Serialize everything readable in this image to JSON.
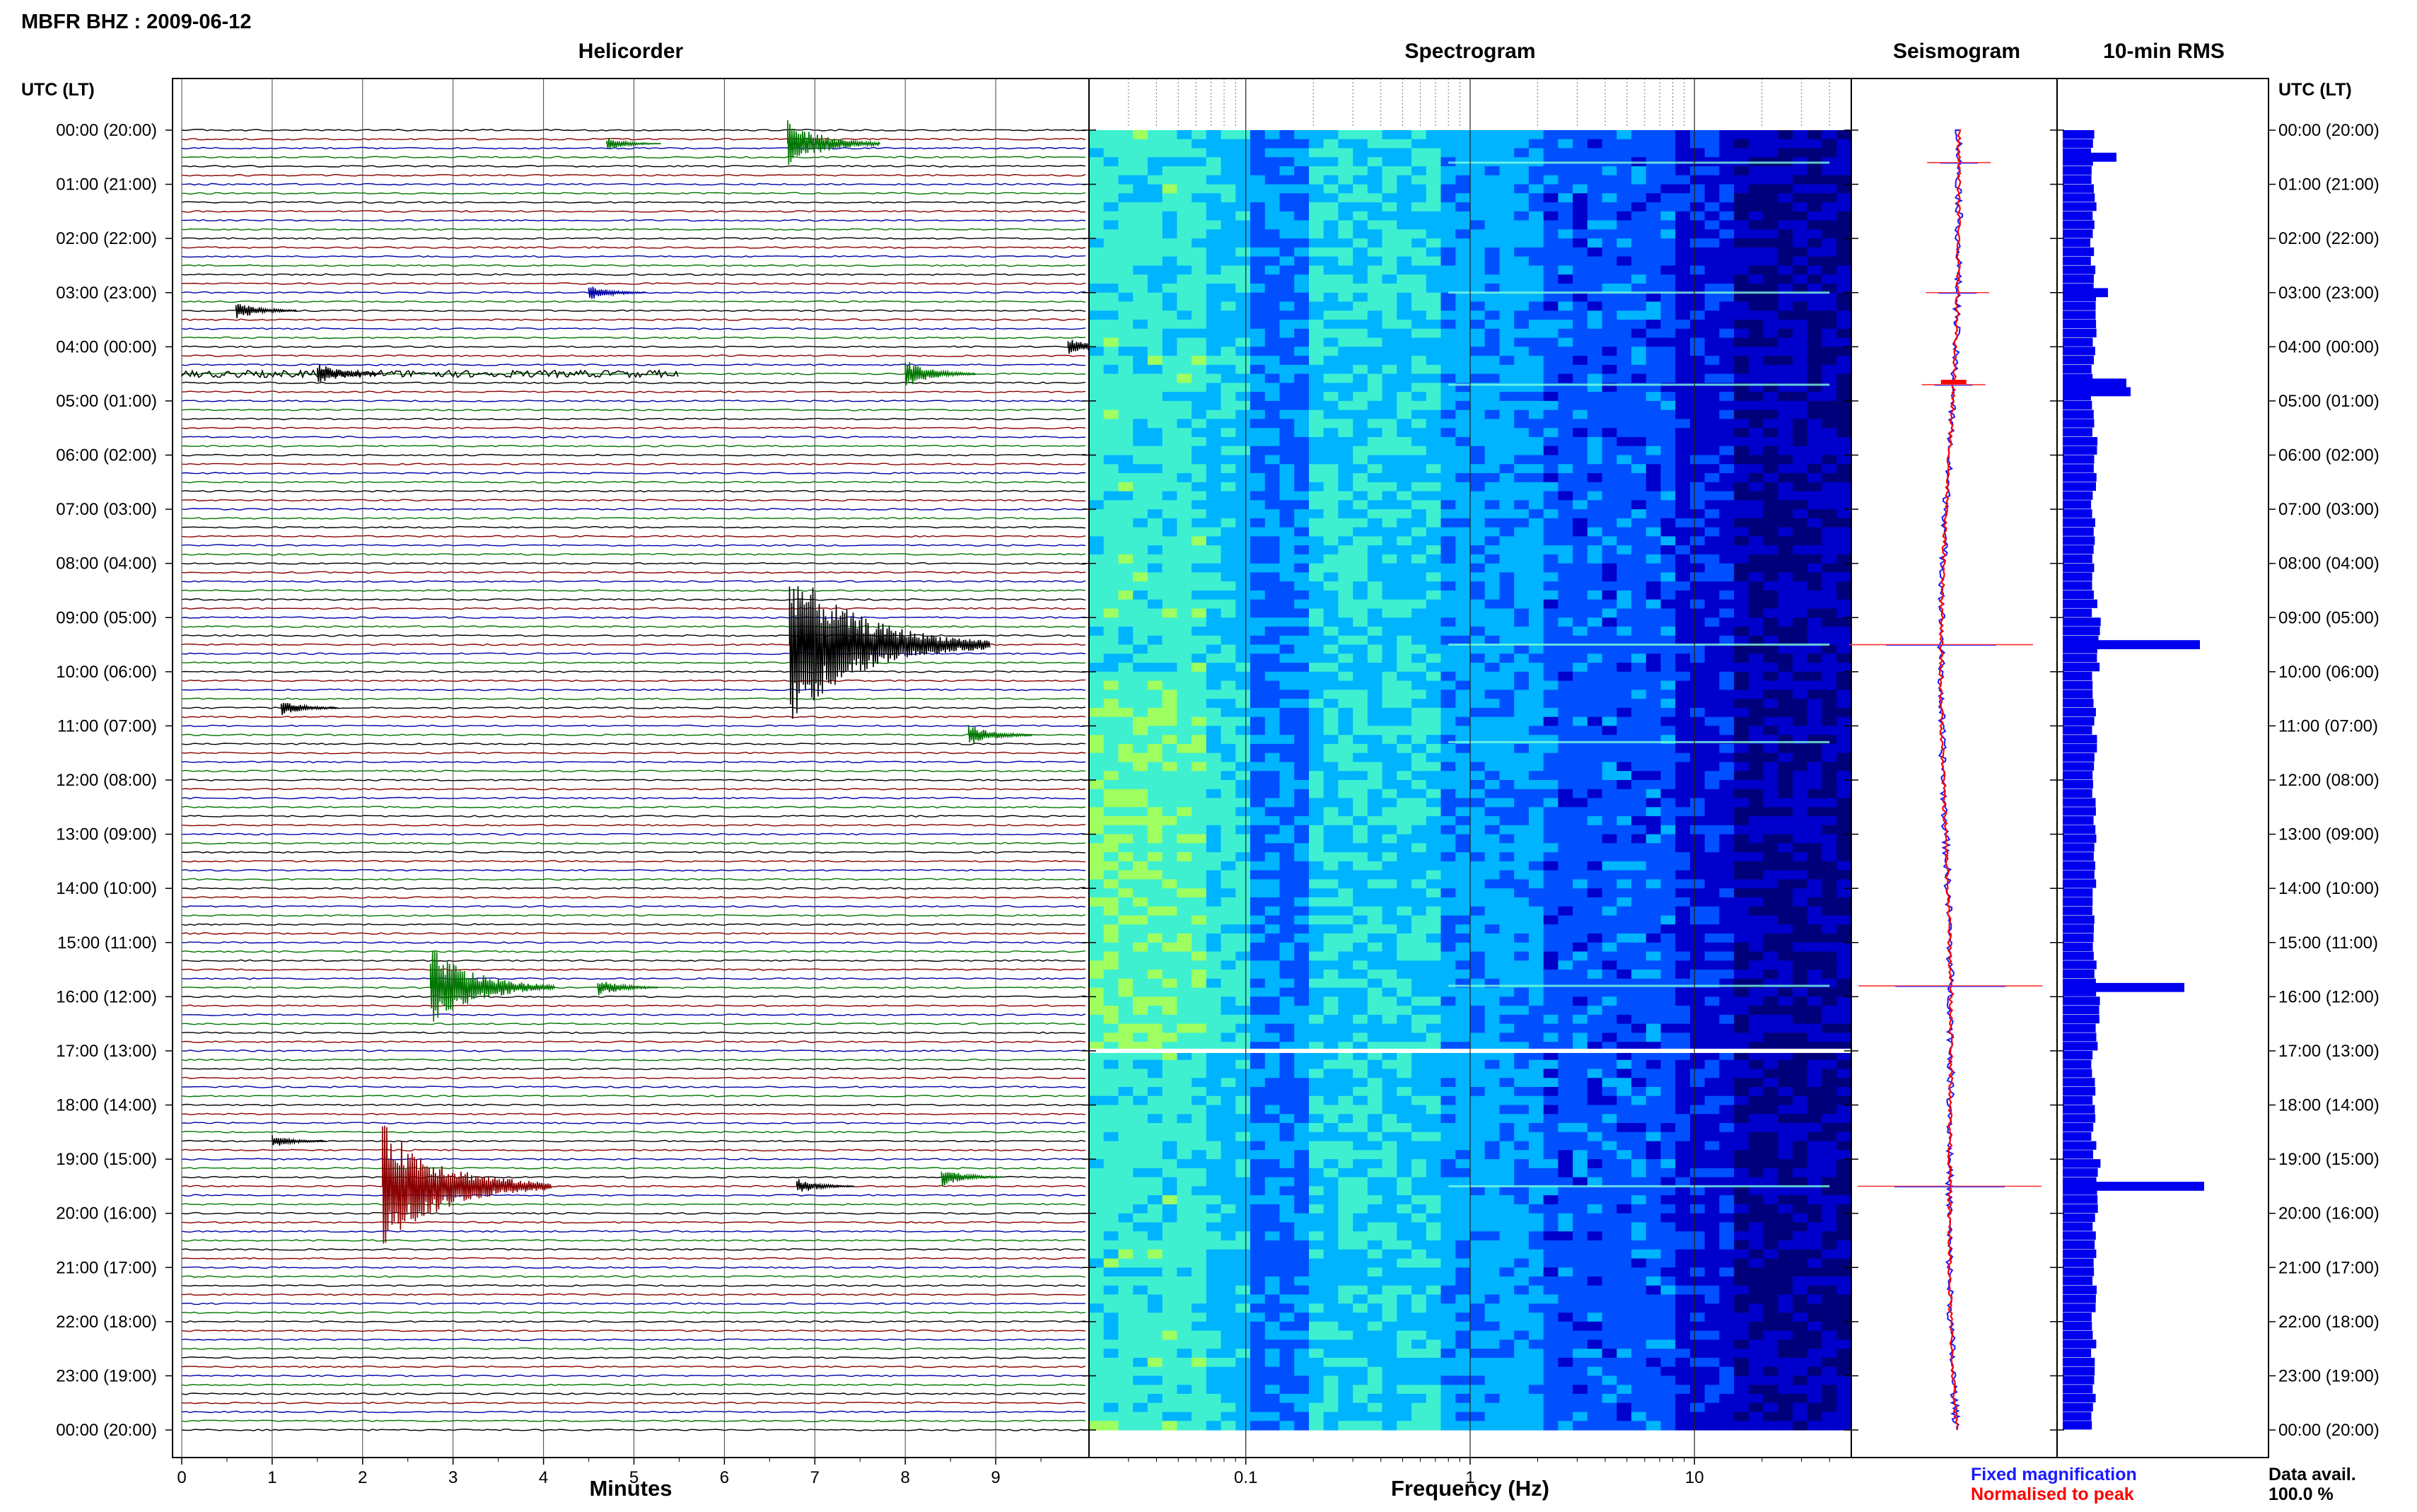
{
  "station_title": "MBFR BHZ : 2009-06-12",
  "time_axis_label": "UTC (LT)",
  "chart_data": [
    {
      "type": "line",
      "panel": "helicorder",
      "title": "Helicorder",
      "xlabel": "Minutes",
      "xlim": [
        0,
        10
      ],
      "x_ticks": [
        "0",
        "1",
        "2",
        "3",
        "4",
        "5",
        "6",
        "7",
        "8",
        "9"
      ],
      "trace_colors": [
        "#000000",
        "#8b0000",
        "#0000aa",
        "#007700"
      ],
      "row_labels": [
        "00:00 (20:00)",
        "01:00 (21:00)",
        "02:00 (22:00)",
        "03:00 (23:00)",
        "04:00 (00:00)",
        "05:00 (01:00)",
        "06:00 (02:00)",
        "07:00 (03:00)",
        "08:00 (04:00)",
        "09:00 (05:00)",
        "10:00 (06:00)",
        "11:00 (07:00)",
        "12:00 (08:00)",
        "13:00 (09:00)",
        "14:00 (10:00)",
        "15:00 (11:00)",
        "16:00 (12:00)",
        "17:00 (13:00)",
        "18:00 (14:00)",
        "19:00 (15:00)",
        "20:00 (16:00)",
        "21:00 (17:00)",
        "22:00 (18:00)",
        "23:00 (19:00)",
        "00:00 (20:00)"
      ],
      "events": [
        {
          "hour": 0.25,
          "minute": 6.7,
          "amplitude": 0.8,
          "color": "#007700"
        },
        {
          "hour": 0.25,
          "minute": 4.7,
          "amplitude": 0.2,
          "color": "#007700"
        },
        {
          "hour": 3.0,
          "minute": 4.5,
          "amplitude": 0.25,
          "color": "#0000aa"
        },
        {
          "hour": 3.33,
          "minute": 0.6,
          "amplitude": 0.3,
          "color": "#000000"
        },
        {
          "hour": 4.0,
          "minute": 9.8,
          "amplitude": 0.3,
          "color": "#000000"
        },
        {
          "hour": 4.5,
          "minute": 1.5,
          "amplitude": 0.35,
          "color": "#000000"
        },
        {
          "hour": 4.5,
          "minute": 8.0,
          "amplitude": 0.45,
          "color": "#007700"
        },
        {
          "hour": 9.5,
          "minute": 6.72,
          "amplitude": 2.5,
          "color": "#000000"
        },
        {
          "hour": 10.67,
          "minute": 1.1,
          "amplitude": 0.25,
          "color": "#000000"
        },
        {
          "hour": 11.17,
          "minute": 8.7,
          "amplitude": 0.35,
          "color": "#007700"
        },
        {
          "hour": 15.83,
          "minute": 2.75,
          "amplitude": 1.3,
          "color": "#007700"
        },
        {
          "hour": 15.83,
          "minute": 4.6,
          "amplitude": 0.3,
          "color": "#007700"
        },
        {
          "hour": 19.5,
          "minute": 2.22,
          "amplitude": 2.0,
          "color": "#8b0000"
        },
        {
          "hour": 19.33,
          "minute": 8.4,
          "amplitude": 0.3,
          "color": "#007700"
        },
        {
          "hour": 19.5,
          "minute": 6.8,
          "amplitude": 0.25,
          "color": "#000000"
        },
        {
          "hour": 18.67,
          "minute": 1.0,
          "amplitude": 0.2,
          "color": "#000000"
        }
      ]
    },
    {
      "type": "heatmap",
      "panel": "spectrogram",
      "title": "Spectrogram",
      "xlabel": "Frequency (Hz)",
      "xscale": "log",
      "xlim": [
        0.02,
        50
      ],
      "x_ticks": [
        {
          "label": "0.1",
          "value": 0.1
        },
        {
          "label": "1",
          "value": 1
        },
        {
          "label": "10",
          "value": 10
        }
      ],
      "colormap": [
        "#00007a",
        "#0000cc",
        "#0050ff",
        "#00b4ff",
        "#3ff0d0",
        "#a0ff60"
      ],
      "gap_hour": 17.0
    },
    {
      "type": "line",
      "panel": "seismogram",
      "title": "Seismogram",
      "legend": [
        {
          "label": "Fixed magnification",
          "color": "#1a1aff"
        },
        {
          "label": "Normalised to peak",
          "color": "#ff0000"
        }
      ],
      "spikes_hours": [
        0.6,
        3.0,
        4.7,
        9.5,
        15.8,
        19.5
      ]
    },
    {
      "type": "bar",
      "panel": "rms",
      "title": "10-min RMS",
      "bar_color": "#0000ee",
      "values_per_hour": [
        0.5,
        0.6,
        0.4,
        0.7,
        0.4,
        0.6,
        0.5,
        0.5,
        0.6,
        1.0,
        0.5,
        0.6,
        0.5,
        0.5,
        0.5,
        0.5,
        0.9,
        0.5,
        0.5,
        1.0,
        0.5,
        0.5,
        0.5,
        0.5
      ],
      "peak_bars": [
        {
          "hour": 0.5,
          "value": 0.38
        },
        {
          "hour": 3.0,
          "value": 0.32
        },
        {
          "hour": 4.67,
          "value": 0.45
        },
        {
          "hour": 4.83,
          "value": 0.48
        },
        {
          "hour": 9.5,
          "value": 0.97
        },
        {
          "hour": 15.83,
          "value": 0.86
        },
        {
          "hour": 19.5,
          "value": 1.0
        }
      ],
      "availability_label": "Data avail.",
      "availability_value": "100.0 %"
    }
  ]
}
